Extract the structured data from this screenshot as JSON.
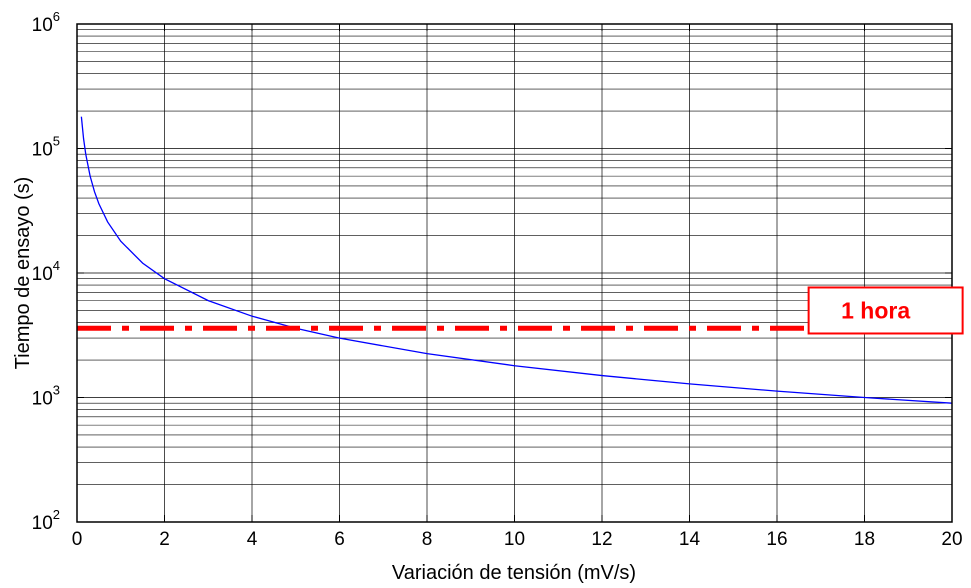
{
  "chart_data": {
    "type": "line",
    "title": "",
    "xlabel": "Variación de tensión (mV/s)",
    "ylabel": "Tiempo de ensayo (s)",
    "xlim": [
      0,
      20
    ],
    "ylim": [
      100,
      1000000
    ],
    "yscale": "log",
    "grid": true,
    "xticks": [
      0,
      2,
      4,
      6,
      8,
      10,
      12,
      14,
      16,
      18,
      20
    ],
    "yticks": [
      {
        "base": "10",
        "exp": "2",
        "value": 100
      },
      {
        "base": "10",
        "exp": "3",
        "value": 1000
      },
      {
        "base": "10",
        "exp": "4",
        "value": 10000
      },
      {
        "base": "10",
        "exp": "5",
        "value": 100000
      },
      {
        "base": "10",
        "exp": "6",
        "value": 1000000
      }
    ],
    "series": [
      {
        "color": "#0000ff",
        "style": "solid",
        "x": [
          0.1,
          0.15,
          0.2,
          0.3,
          0.4,
          0.5,
          0.7,
          1,
          1.5,
          2,
          3,
          4,
          5,
          6,
          8,
          10,
          12,
          14,
          16,
          18,
          20
        ],
        "y": [
          180000,
          120000,
          90000,
          60000,
          45000,
          36000,
          25700,
          18000,
          12000,
          9000,
          6000,
          4500,
          3600,
          3000,
          2250,
          1800,
          1500,
          1286,
          1125,
          1000,
          900
        ]
      },
      {
        "color": "#ff0000",
        "style": "dash-dot",
        "x": [
          0,
          20
        ],
        "y": [
          3600,
          3600
        ]
      }
    ],
    "annotations": [
      {
        "text": "1 hora",
        "color": "#ff0000",
        "x": 18.3,
        "y": 5000
      }
    ]
  }
}
